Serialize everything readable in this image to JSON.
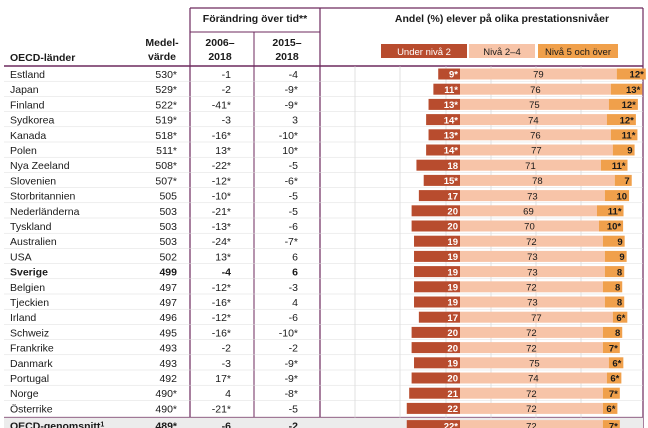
{
  "headers": {
    "country": "OECD-länder",
    "mean_l1": "Medel-",
    "mean_l2": "värde",
    "change_title": "Förändring över tid**",
    "c1_l1": "2006–",
    "c1_l2": "2018",
    "c2_l1": "2015–",
    "c2_l2": "2018",
    "levels_title": "Andel (%) elever på olika prestationsnivåer"
  },
  "colors": {
    "under": "#b84c2e",
    "mid": "#f7c4a8",
    "top": "#f0a04b",
    "lines": "#6d2a5e",
    "grid": "#cfcfcf"
  },
  "chart_data": {
    "type": "bar",
    "stacked": true,
    "title": "Andel (%) elever på olika prestationsnivåer",
    "series_names": [
      "Under nivå 2",
      "Nivå 2–4",
      "Nivå 5 och över"
    ],
    "legend": "top",
    "rows": [
      {
        "country": "Estland",
        "mean": "530*",
        "c0618": "-1",
        "c1518": "-4",
        "under": 9,
        "under_lbl": "9*",
        "mid": 79,
        "mid_lbl": "79",
        "top": 12,
        "top_lbl": "12*"
      },
      {
        "country": "Japan",
        "mean": "529*",
        "c0618": "-2",
        "c1518": "-9*",
        "under": 11,
        "under_lbl": "11*",
        "mid": 76,
        "mid_lbl": "76",
        "top": 13,
        "top_lbl": "13*"
      },
      {
        "country": "Finland",
        "mean": "522*",
        "c0618": "-41*",
        "c1518": "-9*",
        "under": 13,
        "under_lbl": "13*",
        "mid": 75,
        "mid_lbl": "75",
        "top": 12,
        "top_lbl": "12*"
      },
      {
        "country": "Sydkorea",
        "mean": "519*",
        "c0618": "-3",
        "c1518": "3",
        "under": 14,
        "under_lbl": "14*",
        "mid": 74,
        "mid_lbl": "74",
        "top": 12,
        "top_lbl": "12*"
      },
      {
        "country": "Kanada",
        "mean": "518*",
        "c0618": "-16*",
        "c1518": "-10*",
        "under": 13,
        "under_lbl": "13*",
        "mid": 76,
        "mid_lbl": "76",
        "top": 11,
        "top_lbl": "11*"
      },
      {
        "country": "Polen",
        "mean": "511*",
        "c0618": "13*",
        "c1518": "10*",
        "under": 14,
        "under_lbl": "14*",
        "mid": 77,
        "mid_lbl": "77",
        "top": 9,
        "top_lbl": "9"
      },
      {
        "country": "Nya Zeeland",
        "mean": "508*",
        "c0618": "-22*",
        "c1518": "-5",
        "under": 18,
        "under_lbl": "18",
        "mid": 71,
        "mid_lbl": "71",
        "top": 11,
        "top_lbl": "11*"
      },
      {
        "country": "Slovenien",
        "mean": "507*",
        "c0618": "-12*",
        "c1518": "-6*",
        "under": 15,
        "under_lbl": "15*",
        "mid": 78,
        "mid_lbl": "78",
        "top": 7,
        "top_lbl": "7"
      },
      {
        "country": "Storbritannien",
        "mean": "505",
        "c0618": "-10*",
        "c1518": "-5",
        "under": 17,
        "under_lbl": "17",
        "mid": 73,
        "mid_lbl": "73",
        "top": 10,
        "top_lbl": "10"
      },
      {
        "country": "Nederländerna",
        "mean": "503",
        "c0618": "-21*",
        "c1518": "-5",
        "under": 20,
        "under_lbl": "20",
        "mid": 69,
        "mid_lbl": "69",
        "top": 11,
        "top_lbl": "11*"
      },
      {
        "country": "Tyskland",
        "mean": "503",
        "c0618": "-13*",
        "c1518": "-6",
        "under": 20,
        "under_lbl": "20",
        "mid": 70,
        "mid_lbl": "70",
        "top": 10,
        "top_lbl": "10*"
      },
      {
        "country": "Australien",
        "mean": "503",
        "c0618": "-24*",
        "c1518": "-7*",
        "under": 19,
        "under_lbl": "19",
        "mid": 72,
        "mid_lbl": "72",
        "top": 9,
        "top_lbl": "9"
      },
      {
        "country": "USA",
        "mean": "502",
        "c0618": "13*",
        "c1518": "6",
        "under": 19,
        "under_lbl": "19",
        "mid": 73,
        "mid_lbl": "73",
        "top": 9,
        "top_lbl": "9"
      },
      {
        "country": "Sverige",
        "mean": "499",
        "c0618": "-4",
        "c1518": "6",
        "under": 19,
        "under_lbl": "19",
        "mid": 73,
        "mid_lbl": "73",
        "top": 8,
        "top_lbl": "8",
        "bold": true
      },
      {
        "country": "Belgien",
        "mean": "497",
        "c0618": "-12*",
        "c1518": "-3",
        "under": 19,
        "under_lbl": "19",
        "mid": 72,
        "mid_lbl": "72",
        "top": 8,
        "top_lbl": "8"
      },
      {
        "country": "Tjeckien",
        "mean": "497",
        "c0618": "-16*",
        "c1518": "4",
        "under": 19,
        "under_lbl": "19",
        "mid": 73,
        "mid_lbl": "73",
        "top": 8,
        "top_lbl": "8"
      },
      {
        "country": "Irland",
        "mean": "496",
        "c0618": "-12*",
        "c1518": "-6",
        "under": 17,
        "under_lbl": "17",
        "mid": 77,
        "mid_lbl": "77",
        "top": 6,
        "top_lbl": "6*"
      },
      {
        "country": "Schweiz",
        "mean": "495",
        "c0618": "-16*",
        "c1518": "-10*",
        "under": 20,
        "under_lbl": "20",
        "mid": 72,
        "mid_lbl": "72",
        "top": 8,
        "top_lbl": "8"
      },
      {
        "country": "Frankrike",
        "mean": "493",
        "c0618": "-2",
        "c1518": "-2",
        "under": 20,
        "under_lbl": "20",
        "mid": 72,
        "mid_lbl": "72",
        "top": 7,
        "top_lbl": "7*"
      },
      {
        "country": "Danmark",
        "mean": "493",
        "c0618": "-3",
        "c1518": "-9*",
        "under": 19,
        "under_lbl": "19",
        "mid": 75,
        "mid_lbl": "75",
        "top": 6,
        "top_lbl": "6*"
      },
      {
        "country": "Portugal",
        "mean": "492",
        "c0618": "17*",
        "c1518": "-9*",
        "under": 20,
        "under_lbl": "20",
        "mid": 74,
        "mid_lbl": "74",
        "top": 6,
        "top_lbl": "6*"
      },
      {
        "country": "Norge",
        "mean": "490*",
        "c0618": "4",
        "c1518": "-8*",
        "under": 21,
        "under_lbl": "21",
        "mid": 72,
        "mid_lbl": "72",
        "top": 7,
        "top_lbl": "7*"
      },
      {
        "country": "Österrike",
        "mean": "490*",
        "c0618": "-21*",
        "c1518": "-5",
        "under": 22,
        "under_lbl": "22",
        "mid": 72,
        "mid_lbl": "72",
        "top": 6,
        "top_lbl": "6*"
      }
    ],
    "summary": {
      "country": "OECD-genomsnitt",
      "sup": "1",
      "mean": "489*",
      "c0618": "-6",
      "c1518": "-2",
      "under": 22,
      "under_lbl": "22*",
      "mid": 72,
      "mid_lbl": "72",
      "top": 7,
      "top_lbl": "7*"
    }
  }
}
